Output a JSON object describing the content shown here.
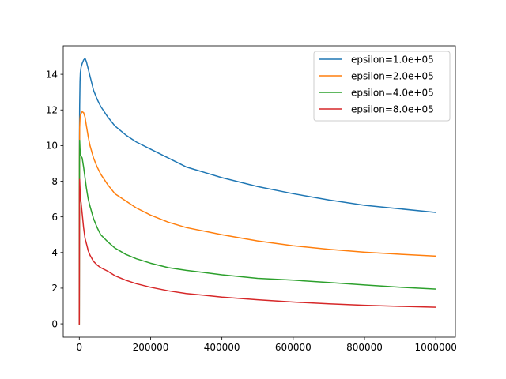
{
  "chart_data": {
    "type": "line",
    "title": "",
    "xlabel": "",
    "ylabel": "",
    "xlim": [
      -45000,
      1055000
    ],
    "ylim": [
      -0.75,
      15.6
    ],
    "xticks": [
      0,
      200000,
      400000,
      600000,
      800000,
      1000000
    ],
    "xtick_labels": [
      "0",
      "200000",
      "400000",
      "600000",
      "800000",
      "1000000"
    ],
    "yticks": [
      0,
      2,
      4,
      6,
      8,
      10,
      12,
      14
    ],
    "ytick_labels": [
      "0",
      "2",
      "4",
      "6",
      "8",
      "10",
      "12",
      "14"
    ],
    "grid": false,
    "legend_position": "top-right",
    "series": [
      {
        "name": "epsilon=1.0e+05",
        "color": "#1f77b4",
        "x": [
          0,
          500,
          1000,
          2000,
          3000,
          5000,
          8000,
          12000,
          16000,
          20000,
          25000,
          30000,
          40000,
          50000,
          60000,
          80000,
          100000,
          130000,
          160000,
          200000,
          250000,
          300000,
          400000,
          500000,
          600000,
          700000,
          800000,
          900000,
          1000000
        ],
        "y": [
          0,
          10.5,
          12.2,
          13.6,
          14.1,
          14.4,
          14.6,
          14.8,
          14.9,
          14.7,
          14.3,
          13.9,
          13.1,
          12.6,
          12.2,
          11.6,
          11.1,
          10.6,
          10.2,
          9.8,
          9.3,
          8.8,
          8.2,
          7.7,
          7.3,
          6.95,
          6.65,
          6.45,
          6.25
        ]
      },
      {
        "name": "epsilon=2.0e+05",
        "color": "#ff7f0e",
        "x": [
          0,
          500,
          1000,
          2000,
          3000,
          5000,
          8000,
          12000,
          16000,
          20000,
          25000,
          30000,
          40000,
          50000,
          60000,
          80000,
          100000,
          130000,
          160000,
          200000,
          250000,
          300000,
          400000,
          500000,
          600000,
          700000,
          800000,
          900000,
          1000000
        ],
        "y": [
          0,
          9.5,
          11.0,
          11.5,
          11.7,
          11.8,
          11.9,
          11.85,
          11.6,
          11.1,
          10.5,
          10.0,
          9.3,
          8.8,
          8.4,
          7.8,
          7.3,
          6.9,
          6.5,
          6.1,
          5.7,
          5.4,
          5.0,
          4.65,
          4.38,
          4.18,
          4.02,
          3.9,
          3.8
        ]
      },
      {
        "name": "epsilon=4.0e+05",
        "color": "#2ca02c",
        "x": [
          0,
          500,
          1000,
          2000,
          3000,
          5000,
          8000,
          12000,
          16000,
          20000,
          25000,
          30000,
          40000,
          50000,
          60000,
          80000,
          100000,
          130000,
          160000,
          200000,
          250000,
          300000,
          400000,
          500000,
          600000,
          700000,
          800000,
          900000,
          1000000
        ],
        "y": [
          0,
          9.0,
          10.3,
          9.8,
          9.5,
          9.4,
          9.3,
          8.8,
          8.2,
          7.6,
          7.0,
          6.6,
          5.9,
          5.4,
          5.0,
          4.6,
          4.25,
          3.9,
          3.65,
          3.4,
          3.15,
          3.0,
          2.75,
          2.55,
          2.45,
          2.32,
          2.18,
          2.05,
          1.95
        ]
      },
      {
        "name": "epsilon=8.0e+05",
        "color": "#d62728",
        "x": [
          0,
          500,
          1000,
          2000,
          3000,
          5000,
          8000,
          12000,
          16000,
          20000,
          25000,
          30000,
          40000,
          50000,
          60000,
          80000,
          100000,
          130000,
          160000,
          200000,
          250000,
          300000,
          400000,
          500000,
          600000,
          700000,
          800000,
          900000,
          1000000
        ],
        "y": [
          0,
          7.3,
          8.1,
          7.6,
          7.0,
          6.8,
          6.2,
          5.4,
          4.8,
          4.5,
          4.1,
          3.85,
          3.5,
          3.3,
          3.15,
          2.95,
          2.7,
          2.45,
          2.25,
          2.05,
          1.85,
          1.7,
          1.5,
          1.35,
          1.22,
          1.12,
          1.04,
          0.98,
          0.93
        ]
      }
    ]
  }
}
